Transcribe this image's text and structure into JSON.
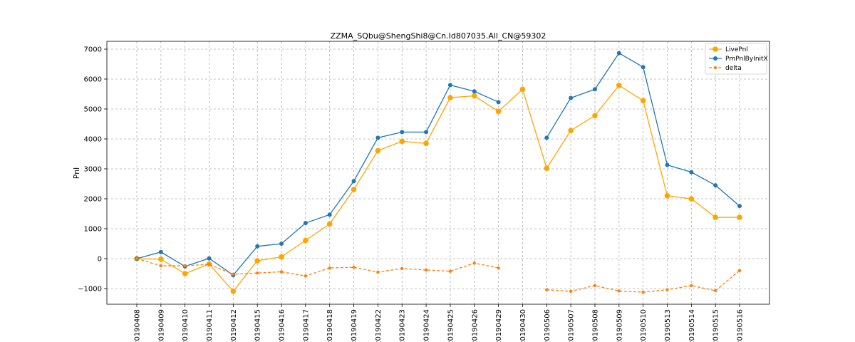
{
  "chart_data": {
    "type": "line",
    "title": "ZZMA_SQbu@ShengShi8@Cn.Id807035.All_CN@59302",
    "xlabel": "",
    "ylabel": "Pnl",
    "ylim": [
      -1500,
      7200
    ],
    "yticks": [
      -1000,
      0,
      1000,
      2000,
      3000,
      4000,
      5000,
      6000,
      7000
    ],
    "ytick_labels": [
      "−1000",
      "0",
      "1000",
      "2000",
      "3000",
      "4000",
      "5000",
      "6000",
      "7000"
    ],
    "grid": true,
    "legend_position": "top-right",
    "categories": [
      "20190408",
      "20190409",
      "20190410",
      "20190411",
      "20190412",
      "20190415",
      "20190416",
      "20190417",
      "20190418",
      "20190419",
      "20190422",
      "20190423",
      "20190424",
      "20190425",
      "20190426",
      "20190429",
      "20190430",
      "20190506",
      "20190507",
      "20190508",
      "20190509",
      "20190510",
      "20190513",
      "20190514",
      "20190515",
      "20190516"
    ],
    "series": [
      {
        "name": "LivePnl",
        "color": "#ffa500",
        "style": "solid",
        "marker": "circle-large",
        "values": [
          0,
          -20,
          -500,
          -180,
          -1090,
          -70,
          60,
          610,
          1160,
          2310,
          3610,
          3920,
          3850,
          5380,
          5440,
          4920,
          5660,
          3020,
          4280,
          4780,
          5790,
          5280,
          2100,
          2000,
          1380,
          1380
        ]
      },
      {
        "name": "PmPnlByInitX",
        "color": "#1f77b4",
        "style": "solid",
        "marker": "circle",
        "values": [
          0,
          220,
          -260,
          10,
          -550,
          410,
          500,
          1190,
          1470,
          2590,
          4040,
          4230,
          4230,
          5800,
          5590,
          5230,
          null,
          4040,
          5370,
          5660,
          6870,
          6400,
          3130,
          2890,
          2450,
          1760
        ]
      },
      {
        "name": "delta",
        "color": "#ff7f0e",
        "style": "dashed",
        "marker": "circle-small",
        "values": [
          0,
          -240,
          -240,
          -190,
          -520,
          -480,
          -440,
          -580,
          -310,
          -290,
          -450,
          -330,
          -380,
          -420,
          -150,
          -310,
          null,
          -1040,
          -1090,
          -900,
          -1080,
          -1120,
          -1040,
          -900,
          -1070,
          -400
        ]
      }
    ]
  }
}
